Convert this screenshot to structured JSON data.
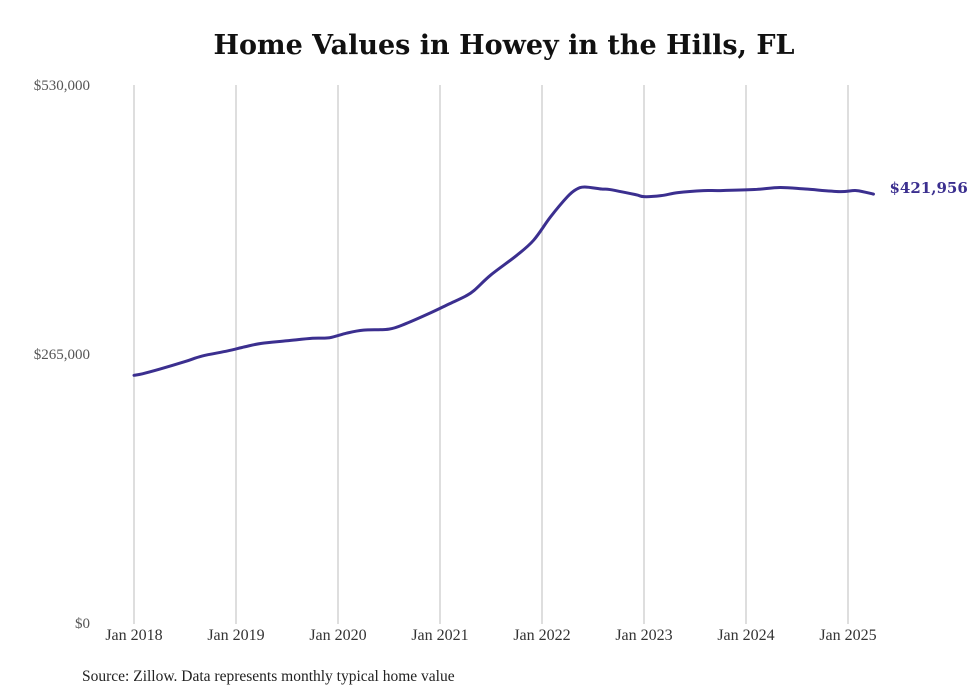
{
  "chart_data": {
    "type": "line",
    "title": "Home Values in Howey in the Hills, FL",
    "source_note": "Source: Zillow. Data represents monthly typical home value",
    "ylim": [
      0,
      530000
    ],
    "y_ticks": [
      {
        "value": 0,
        "label": "$0"
      },
      {
        "value": 265000,
        "label": "$265,000"
      },
      {
        "value": 530000,
        "label": "$530,000"
      }
    ],
    "x_ticks": [
      {
        "value": 2018,
        "label": "Jan 2018"
      },
      {
        "value": 2019,
        "label": "Jan 2019"
      },
      {
        "value": 2020,
        "label": "Jan 2020"
      },
      {
        "value": 2021,
        "label": "Jan 2021"
      },
      {
        "value": 2022,
        "label": "Jan 2022"
      },
      {
        "value": 2023,
        "label": "Jan 2023"
      },
      {
        "value": 2024,
        "label": "Jan 2024"
      },
      {
        "value": 2025,
        "label": "Jan 2025"
      }
    ],
    "grid": {
      "vertical": true,
      "horizontal": false
    },
    "line_color": "#3b2f8f",
    "grid_color": "#bdbdbd",
    "end_label": "$421,956",
    "series": [
      {
        "x": [
          2018.0,
          2018.083,
          2018.25,
          2018.5,
          2018.667,
          2018.917,
          2019.083,
          2019.25,
          2019.5,
          2019.75,
          2019.917,
          2020.083,
          2020.25,
          2020.5,
          2020.667,
          2020.917,
          2021.083,
          2021.25,
          2021.333,
          2021.5,
          2021.75,
          2021.917,
          2022.083,
          2022.25,
          2022.333,
          2022.417,
          2022.583,
          2022.667,
          2022.917,
          2023.0,
          2023.167,
          2023.333,
          2023.583,
          2023.75,
          2024.083,
          2024.333,
          2024.583,
          2024.917,
          2025.083,
          2025.25
        ],
        "y": [
          244000,
          245500,
          250000,
          257500,
          263000,
          268000,
          272000,
          275500,
          278000,
          280500,
          281000,
          285500,
          288500,
          289500,
          295000,
          306000,
          314000,
          322000,
          327500,
          343000,
          362000,
          377000,
          400000,
          420000,
          427000,
          429500,
          427500,
          427000,
          422000,
          420000,
          421000,
          424000,
          426000,
          426000,
          427000,
          429000,
          427500,
          425000,
          426000,
          422500
        ]
      }
    ]
  }
}
